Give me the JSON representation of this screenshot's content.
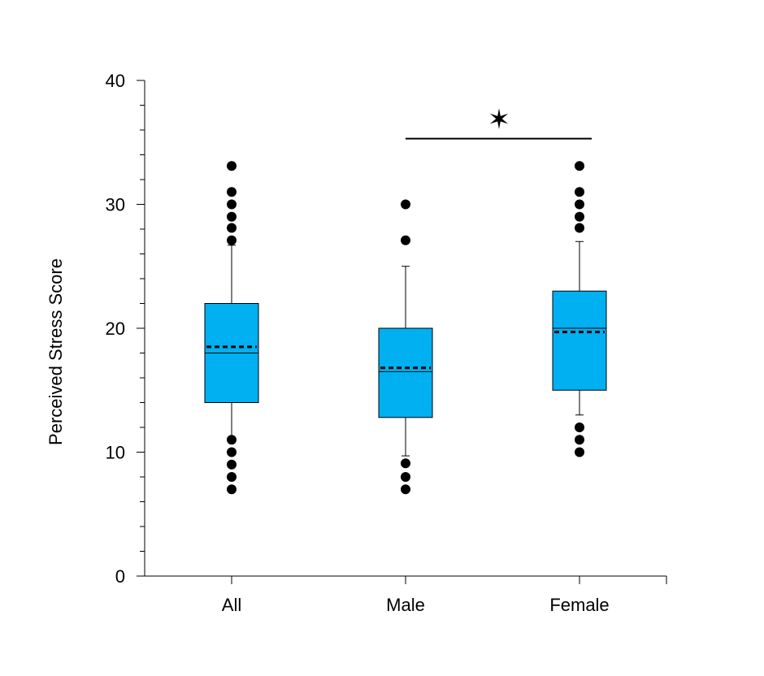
{
  "chart_data": {
    "type": "box",
    "ylabel": "Perceived Stress Score",
    "xlabel": "",
    "ylim": [
      0,
      40
    ],
    "yticks": [
      0,
      10,
      20,
      30,
      40
    ],
    "y_minor_step": 2,
    "grid": false,
    "categories": [
      "All",
      "Male",
      "Female"
    ],
    "box_color": "#00B0F0",
    "groups": [
      {
        "category": "All",
        "q1": 14,
        "median": 18,
        "q3": 22,
        "mean": 18.5,
        "whisker_low": 11,
        "whisker_high": 26.7,
        "outliers": [
          7,
          8,
          9,
          10,
          11,
          27.1,
          28.1,
          29,
          30,
          31,
          33.1
        ]
      },
      {
        "category": "Male",
        "q1": 12.8,
        "median": 16.5,
        "q3": 20,
        "mean": 16.8,
        "whisker_low": 9.7,
        "whisker_high": 25,
        "outliers": [
          7,
          8,
          9.1,
          27.1,
          30
        ]
      },
      {
        "category": "Female",
        "q1": 15,
        "median": 20,
        "q3": 23,
        "mean": 19.7,
        "whisker_low": 13,
        "whisker_high": 27,
        "outliers": [
          10,
          11,
          12,
          28.1,
          29,
          30,
          31,
          33.1
        ]
      }
    ],
    "significance": {
      "from": "Male",
      "to": "Female",
      "y": 35.3,
      "marker": "✶"
    }
  }
}
